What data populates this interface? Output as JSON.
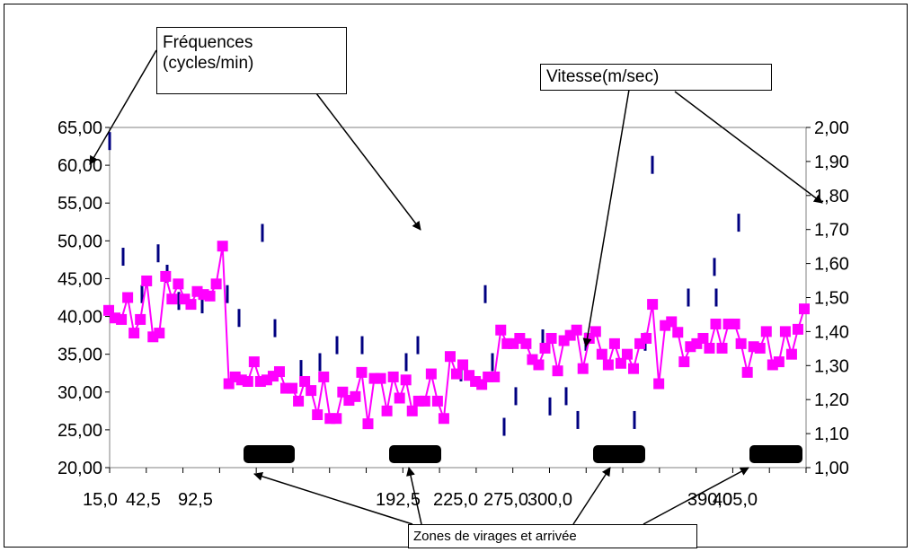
{
  "chart_data": {
    "type": "line",
    "x_tick_labels": [
      "15,0",
      "42,5",
      "92,5",
      "192,5",
      "225,0",
      "275,0",
      "300,0",
      "390,0",
      "405,0"
    ],
    "y_left": {
      "ticks": [
        "20,00",
        "25,00",
        "30,00",
        "35,00",
        "40,00",
        "45,00",
        "50,00",
        "55,00",
        "60,00",
        "65,00"
      ],
      "range": [
        20,
        65
      ]
    },
    "y_right": {
      "ticks": [
        "1,00",
        "1,10",
        "1,20",
        "1,30",
        "1,40",
        "1,50",
        "1,60",
        "1,70",
        "1,80",
        "1,90",
        "2,00"
      ],
      "range": [
        1.0,
        2.0
      ]
    },
    "series": [
      {
        "axis": "left",
        "color": "#ff00ff",
        "values": [
          40.8,
          39.8,
          39.6,
          42.5,
          37.8,
          39.6,
          44.7,
          37.3,
          37.8,
          45.3,
          42.3,
          44.3,
          42.3,
          41.6,
          43.3,
          42.9,
          42.7,
          44.3,
          49.3,
          31.1,
          32.0,
          31.6,
          31.4,
          34.0,
          31.4,
          31.6,
          32.1,
          32.7,
          30.5,
          30.5,
          28.8,
          31.4,
          30.2,
          27.0,
          32.0,
          26.5,
          26.5,
          30.0,
          28.9,
          29.4,
          32.6,
          25.8,
          31.8,
          31.8,
          27.5,
          32.0,
          29.2,
          31.6,
          27.5,
          28.8,
          28.8,
          32.4,
          28.8,
          26.5,
          34.7,
          32.4,
          33.6,
          32.2,
          31.4,
          31.0,
          32.0,
          32.0,
          38.2,
          36.4,
          36.4,
          37.1,
          36.4,
          34.3,
          33.6,
          35.8,
          37.1,
          32.8,
          36.8,
          37.5,
          38.2,
          33.1,
          37.1,
          38.0,
          35.0,
          33.6,
          36.4,
          33.8,
          35.0,
          33.1,
          36.4,
          37.1,
          41.6,
          31.1,
          38.8,
          39.3,
          37.9,
          34.0,
          36.0,
          36.4,
          37.1,
          35.8,
          39.0,
          35.8,
          39.0,
          39.0,
          36.4,
          32.6,
          36.0,
          35.8,
          38.0,
          33.6,
          34.0,
          38.0,
          35.0,
          38.3,
          41.0
        ]
      },
      {
        "axis": "right",
        "color": "#000080",
        "values": [
          1.96,
          1.62,
          1.51,
          1.63,
          1.57,
          1.49,
          1.48,
          1.51,
          1.44,
          1.69,
          1.41,
          1.29,
          1.31,
          1.36,
          1.36,
          1.31,
          1.36,
          1.28,
          1.51,
          1.31,
          1.12,
          1.21,
          1.38,
          1.18,
          1.21,
          1.14,
          1.37,
          1.14,
          1.37,
          1.89,
          1.5,
          1.59,
          1.5,
          1.72
        ]
      }
    ],
    "black_bars": [
      {
        "label": "",
        "x_value": ""
      }
    ]
  },
  "annotations": {
    "freq_line1": "Fréquences",
    "freq_line2": "(cycles/min)",
    "vitesse": "Vitesse(m/sec)",
    "zones": "Zones de virages et arrivée"
  }
}
